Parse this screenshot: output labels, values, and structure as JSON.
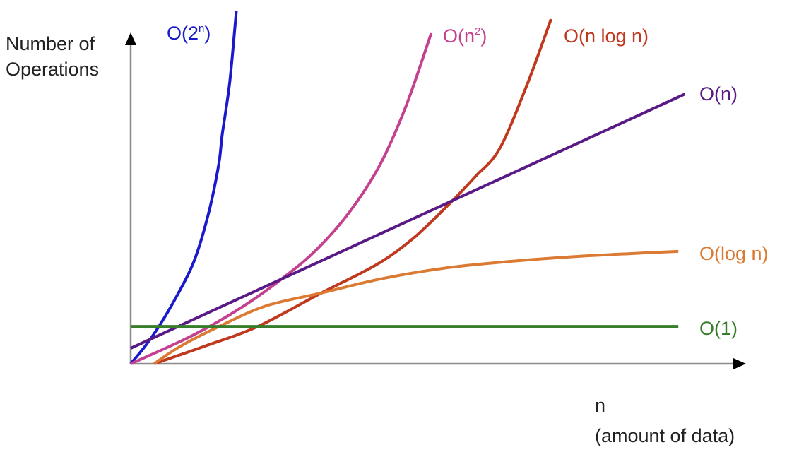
{
  "chart_data": {
    "type": "line",
    "title": "",
    "ylabel_lines": [
      "Number of",
      "Operations"
    ],
    "xlabel_lines": [
      "n",
      "(amount of data)"
    ],
    "xlim": [
      0,
      100
    ],
    "ylim": [
      0,
      100
    ],
    "grid": false,
    "axis_color": "#8c8c8c",
    "series": [
      {
        "name": "O(2n)",
        "label_base": "O(2",
        "label_sup": "n",
        "label_tail": ")",
        "color": "#1a1acc",
        "x": [
          0,
          2.3,
          4.6,
          7.5,
          10.3,
          12.6,
          14.3,
          14.9,
          16.1,
          17.2
        ],
        "y": [
          0,
          5.2,
          11.3,
          20.5,
          31.0,
          45.0,
          60.0,
          69.4,
          85.0,
          106.8
        ]
      },
      {
        "name": "O(n2)",
        "label_base": "O(n",
        "label_sup": "2",
        "label_tail": ")",
        "color": "#c4418f",
        "x": [
          0,
          10,
          18,
          25.3,
          30.5,
          35.6,
          40.5,
          44.8,
          48.9
        ],
        "y": [
          0,
          8.5,
          17.0,
          26.7,
          35.0,
          45.9,
          60.0,
          78.0,
          100.0
        ]
      },
      {
        "name": "O(n log n)",
        "label_base": "O(n log n)",
        "label_sup": "",
        "label_tail": "",
        "color": "#c0391f",
        "x": [
          3.8,
          12,
          20.7,
          31.0,
          40,
          46,
          51.7,
          56,
          60,
          64.4,
          68.4
        ],
        "y": [
          0,
          5.3,
          11.3,
          21.4,
          30.0,
          38.0,
          48.1,
          56.5,
          65.0,
          84.0,
          104.3
        ]
      },
      {
        "name": "O(n)",
        "label_base": "O(n)",
        "label_sup": "",
        "label_tail": "",
        "color": "#5a1a86",
        "x": [
          0,
          90.2
        ],
        "y": [
          4.7,
          81.6
        ]
      },
      {
        "name": "O(log n)",
        "label_base": "O(log n)",
        "label_sup": "",
        "label_tail": "",
        "color": "#db7a33",
        "x": [
          3.8,
          8,
          14.4,
          22,
          31.0,
          41,
          51.7,
          62,
          72,
          81,
          89.1
        ],
        "y": [
          0,
          5.2,
          11.3,
          17.5,
          21.4,
          25.8,
          29.1,
          31.0,
          32.4,
          33.3,
          34.0
        ]
      },
      {
        "name": "O(1)",
        "label_base": "O(1)",
        "label_sup": "",
        "label_tail": "",
        "color": "#367e2a",
        "x": [
          0,
          89.1
        ],
        "y": [
          11.3,
          11.3
        ]
      }
    ]
  }
}
